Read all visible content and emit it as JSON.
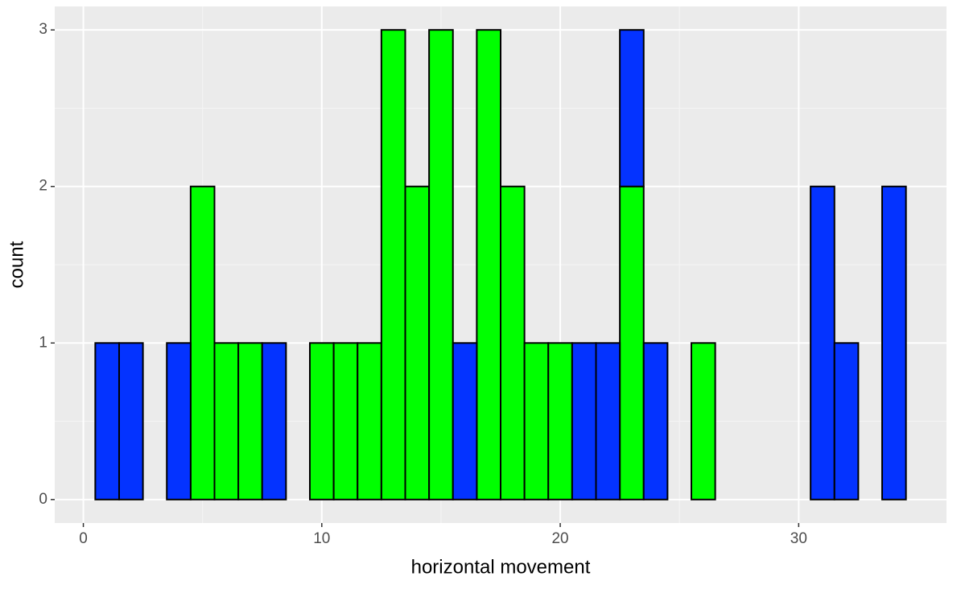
{
  "chart_data": {
    "type": "histogram",
    "x_label": "horizontal movement",
    "y_label": "count",
    "bins": [
      0.5,
      1.5,
      2.5,
      3.5,
      4.5,
      5.5,
      6.5,
      7.5,
      8.5,
      9.5,
      10.5,
      11.5,
      12.5,
      13.5,
      14.5,
      15.5,
      16.5,
      17.5,
      18.5,
      19.5,
      20.5,
      21.5,
      22.5,
      23.5,
      24.5,
      25.5,
      26.5,
      27.5,
      28.5,
      29.5,
      30.5,
      31.5,
      32.5,
      33.5,
      34.5
    ],
    "series": [
      {
        "color": "#00ff00",
        "values": [
          0,
          0,
          0,
          0,
          2,
          1,
          1,
          0,
          0,
          1,
          1,
          1,
          3,
          2,
          3,
          0,
          3,
          2,
          1,
          1,
          0,
          0,
          2,
          0,
          0,
          1,
          0,
          0,
          0,
          0,
          0,
          0,
          0,
          0
        ]
      },
      {
        "color": "#0433ff",
        "values": [
          1,
          1,
          0,
          1,
          0,
          0,
          0,
          1,
          0,
          0,
          0,
          0,
          0,
          0,
          0,
          1,
          0,
          0,
          0,
          0,
          1,
          1,
          1,
          1,
          0,
          0,
          0,
          0,
          0,
          0,
          2,
          1,
          0,
          2
        ]
      }
    ],
    "stacked": true,
    "xlim": [
      -1.2,
      36.2
    ],
    "ylim": [
      -0.15,
      3.15
    ],
    "xticks": [
      0,
      10,
      20,
      30
    ],
    "yticks": [
      0,
      1,
      2,
      3
    ],
    "grid": true
  }
}
